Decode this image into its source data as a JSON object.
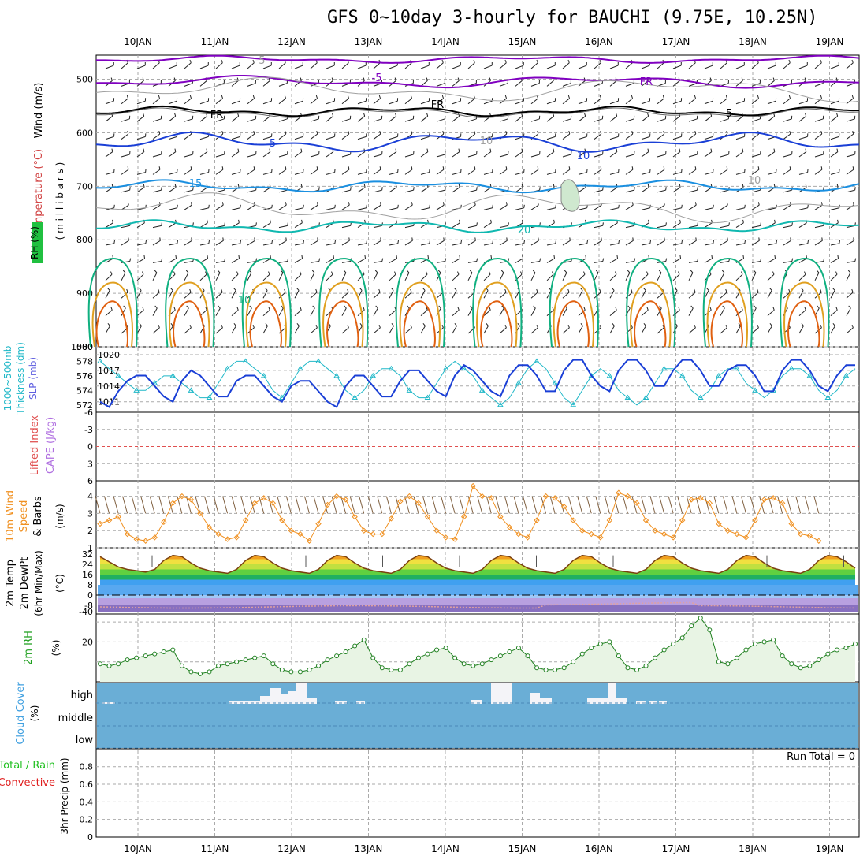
{
  "title": "GFS 0~10day 3-hourly for BAUCHI (9.75E, 10.25N)",
  "dates": [
    "10JAN",
    "11JAN",
    "12JAN",
    "13JAN",
    "14JAN",
    "15JAN",
    "16JAN",
    "17JAN",
    "18JAN",
    "19JAN"
  ],
  "colors": {
    "purple": "#8000c0",
    "black": "#000000",
    "blue": "#1a3fd6",
    "skyblue": "#1a8fe0",
    "teal": "#10b8b0",
    "green": "#10b080",
    "orange": "#e0a020",
    "redorange": "#e06010",
    "gray": "#a0a0a0",
    "slp": "#1a3fd6",
    "thk": "#20b8c8",
    "wind10": "#f09020",
    "rh": "#20a020",
    "cloudbg": "#6aaed6"
  },
  "panels": {
    "upper": {
      "ylabel_wind": "Wind (m/s)",
      "ylabel_temp": "Temperature (°C)",
      "ylabel_mb": "( m i l l i b a r s )",
      "ylabel_rh": "RH (%)",
      "yticks": [
        "500",
        "600",
        "700",
        "800",
        "900",
        "1000"
      ],
      "contour_labels": [
        "-5",
        "-5",
        "FR",
        "FR",
        "FR",
        "5",
        "5",
        "10",
        "15",
        "20",
        "10",
        "10",
        "10"
      ]
    },
    "slp": {
      "ylabel_thk": "1000~500mb Thickness (dm)",
      "ylabel_slp": "SLP (mb)",
      "left_ticks": [
        "580",
        "578",
        "576",
        "574",
        "572"
      ],
      "right_ticks": [
        "1020",
        "1017",
        "1014",
        "1011"
      ]
    },
    "li": {
      "ylabel_li": "Lifted Index",
      "ylabel_cape": "CAPE (J/kg)",
      "yticks": [
        "-6",
        "-3",
        "0",
        "3",
        "6"
      ]
    },
    "wind10": {
      "ylabel": "10m Wind Speed & Barbs",
      "yunit": "(m/s)",
      "yticks": [
        "4",
        "3",
        "2",
        "1"
      ]
    },
    "temp2m": {
      "ylabel": "2m Temp 2m DewPt (6hr Min/Max)",
      "yunit": "(°C)",
      "yticks": [
        "32",
        "24",
        "16",
        "8",
        "0",
        "-8",
        "-40"
      ]
    },
    "rh2m": {
      "ylabel": "2m RH",
      "yunit": "(%)",
      "yticks": [
        "20"
      ]
    },
    "cloud": {
      "ylabel": "Cloud Cover",
      "yunit": "(%)",
      "levels": [
        "high",
        "middle",
        "low"
      ]
    },
    "precip": {
      "ylabel_total": "Total / Rain",
      "ylabel_conv": "Convective",
      "ylabel": "3hr Precip (mm)",
      "yticks": [
        "0.8",
        "0.6",
        "0.4",
        "0.2",
        "0"
      ],
      "run_total": "Run Total = 0"
    }
  },
  "chart_data": {
    "type": "line",
    "x_start": "10JAN",
    "x_step_hours": 3,
    "series": [
      {
        "name": "SLP (mb)",
        "values": [
          1011,
          1010,
          1013,
          1015,
          1016,
          1016,
          1014,
          1012,
          1011,
          1015,
          1017,
          1016,
          1014,
          1012,
          1012,
          1015,
          1016,
          1016,
          1014,
          1012,
          1011,
          1014,
          1015,
          1015,
          1013,
          1011,
          1010,
          1014,
          1016,
          1016,
          1014,
          1012,
          1012,
          1015,
          1017,
          1017,
          1015,
          1013,
          1012,
          1016,
          1018,
          1017,
          1015,
          1013,
          1012,
          1016,
          1018,
          1018,
          1016,
          1013,
          1013,
          1017,
          1019,
          1019,
          1016,
          1014,
          1013,
          1017,
          1019,
          1019,
          1017,
          1014,
          1014,
          1017,
          1019,
          1019,
          1017,
          1014,
          1014,
          1017,
          1018,
          1018,
          1016,
          1013,
          1013,
          1017,
          1019,
          1019,
          1017,
          1014,
          1013,
          1016,
          1018,
          1018
        ]
      },
      {
        "name": "Thickness (dm)",
        "values": [
          578,
          577,
          576,
          575,
          574,
          574,
          575,
          576,
          576,
          575,
          574,
          573,
          573,
          575,
          577,
          578,
          578,
          577,
          576,
          574,
          573,
          575,
          577,
          578,
          578,
          577,
          576,
          574,
          573,
          574,
          576,
          577,
          577,
          576,
          574,
          573,
          573,
          575,
          577,
          578,
          577,
          576,
          574,
          573,
          572,
          573,
          575,
          577,
          578,
          577,
          575,
          573,
          572,
          574,
          576,
          577,
          576,
          574,
          573,
          572,
          573,
          575,
          577,
          577,
          576,
          574,
          573,
          574,
          576,
          577,
          577,
          575,
          574,
          573,
          574,
          576,
          577,
          577,
          576,
          574,
          573,
          574,
          576,
          577
        ]
      },
      {
        "name": "10m Wind Speed (m/s)",
        "values": [
          2.4,
          2.6,
          2.8,
          1.8,
          1.5,
          1.4,
          1.6,
          2.5,
          3.6,
          4.0,
          3.8,
          3.0,
          2.2,
          1.8,
          1.5,
          1.6,
          2.6,
          3.6,
          3.9,
          3.6,
          2.6,
          2.0,
          1.8,
          1.4,
          2.4,
          3.5,
          4.0,
          3.8,
          2.8,
          2.0,
          1.8,
          1.8,
          2.7,
          3.7,
          4.0,
          3.6,
          2.8,
          2.0,
          1.6,
          1.5,
          2.8,
          4.6,
          4.0,
          3.9,
          2.8,
          2.2,
          1.8,
          1.6,
          2.6,
          4.0,
          3.9,
          3.4,
          2.6,
          2.0,
          1.8,
          1.6,
          2.6,
          4.2,
          4.0,
          3.6,
          2.6,
          2.0,
          1.8,
          1.6,
          2.6,
          3.8,
          3.9,
          3.6,
          2.4,
          2.0,
          1.8,
          1.6,
          2.6,
          3.8,
          3.9,
          3.6,
          2.4,
          1.8,
          1.7,
          1.4
        ]
      },
      {
        "name": "2m Temp (°C)",
        "values": [
          30,
          26,
          22,
          20,
          19,
          18,
          20,
          27,
          31,
          30,
          25,
          21,
          19,
          18,
          17,
          20,
          27,
          31,
          30,
          25,
          21,
          19,
          18,
          17,
          20,
          27,
          31,
          30,
          25,
          21,
          19,
          18,
          17,
          20,
          27,
          31,
          30,
          25,
          21,
          19,
          18,
          17,
          20,
          27,
          31,
          30,
          25,
          21,
          19,
          18,
          17,
          20,
          27,
          31,
          30,
          25,
          21,
          19,
          18,
          17,
          20,
          27,
          31,
          30,
          25,
          21,
          19,
          18,
          17,
          20,
          27,
          31,
          30,
          25,
          21,
          19,
          18,
          17,
          20,
          27,
          31,
          30,
          26,
          21
        ]
      },
      {
        "name": "2m RH (%)",
        "values": [
          9,
          8,
          9,
          11,
          12,
          13,
          14,
          15,
          16,
          8,
          5,
          4,
          5,
          8,
          9,
          10,
          11,
          12,
          13,
          9,
          6,
          5,
          5,
          6,
          8,
          11,
          13,
          15,
          18,
          21,
          12,
          7,
          6,
          6,
          9,
          12,
          14,
          16,
          17,
          12,
          9,
          8,
          9,
          11,
          13,
          15,
          17,
          13,
          7,
          6,
          6,
          7,
          10,
          14,
          17,
          19,
          20,
          13,
          7,
          6,
          8,
          12,
          16,
          19,
          22,
          28,
          32,
          26,
          10,
          9,
          12,
          16,
          19,
          20,
          21,
          13,
          9,
          7,
          8,
          11,
          14,
          16,
          17,
          19
        ]
      }
    ],
    "cloud_high_blocks": [
      {
        "x0": 0.0,
        "x1": 0.3
      },
      {
        "x0": 2.6,
        "x1": 3.2
      },
      {
        "x0": 4.5,
        "x1": 4.9
      },
      {
        "x0": 4.9,
        "x1": 5.4
      }
    ],
    "precip": {
      "ylim": [
        0,
        1
      ],
      "values": []
    }
  }
}
